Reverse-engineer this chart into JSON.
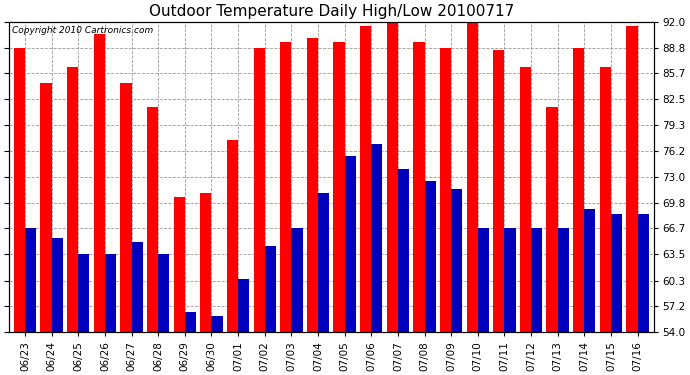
{
  "title": "Outdoor Temperature Daily High/Low 20100717",
  "copyright": "Copyright 2010 Cartronics.com",
  "dates": [
    "06/23",
    "06/24",
    "06/25",
    "06/26",
    "06/27",
    "06/28",
    "06/29",
    "06/30",
    "07/01",
    "07/02",
    "07/03",
    "07/04",
    "07/05",
    "07/06",
    "07/07",
    "07/08",
    "07/09",
    "07/10",
    "07/11",
    "07/12",
    "07/13",
    "07/14",
    "07/15",
    "07/16"
  ],
  "highs": [
    88.8,
    84.5,
    86.5,
    90.5,
    84.5,
    81.5,
    70.5,
    71.0,
    77.5,
    88.8,
    89.5,
    90.0,
    89.5,
    91.5,
    92.5,
    89.5,
    88.8,
    92.5,
    88.5,
    86.5,
    81.5,
    88.8,
    86.5,
    91.5
  ],
  "lows": [
    66.7,
    65.5,
    63.5,
    63.5,
    65.0,
    63.5,
    56.5,
    56.0,
    60.5,
    64.5,
    66.7,
    71.0,
    75.5,
    77.0,
    74.0,
    72.5,
    71.5,
    66.7,
    66.7,
    66.7,
    66.7,
    69.0,
    68.5,
    68.5
  ],
  "bar_color_high": "#ff0000",
  "bar_color_low": "#0000bb",
  "background_color": "#ffffff",
  "plot_bg_color": "#ffffff",
  "grid_color": "#999999",
  "yticks": [
    54.0,
    57.2,
    60.3,
    63.5,
    66.7,
    69.8,
    73.0,
    76.2,
    79.3,
    82.5,
    85.7,
    88.8,
    92.0
  ],
  "ymin": 54.0,
  "ymax": 92.0,
  "title_fontsize": 11,
  "tick_fontsize": 7.5,
  "copyright_fontsize": 6.5
}
